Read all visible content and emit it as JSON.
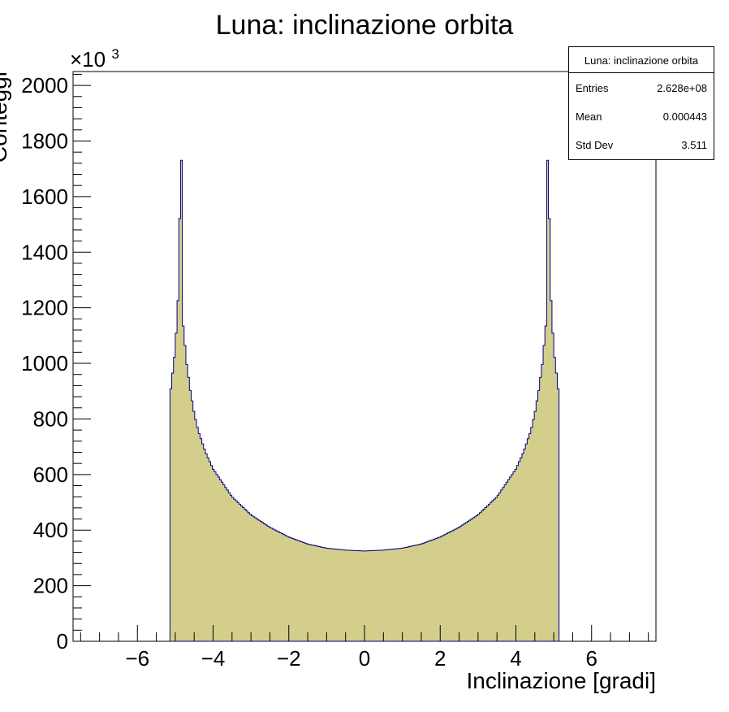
{
  "chart_data": {
    "type": "histogram",
    "title": "Luna: inclinazione orbita",
    "xlabel": "Inclinazione [gradi]",
    "ylabel": "Conteggi",
    "y_multiplier_label": "×10",
    "y_multiplier_exp": "3",
    "xlim": [
      -7.7,
      7.7
    ],
    "ylim": [
      0,
      2050
    ],
    "x_ticks": [
      -6,
      -4,
      -2,
      0,
      2,
      4,
      6
    ],
    "x_tick_labels": [
      "−6",
      "−4",
      "−2",
      "0",
      "2",
      "4",
      "6"
    ],
    "y_ticks": [
      0,
      200,
      400,
      600,
      800,
      1000,
      1200,
      1400,
      1600,
      1800,
      2000
    ],
    "y_tick_labels": [
      "0",
      "200",
      "400",
      "600",
      "800",
      "1000",
      "1200",
      "1400",
      "1600",
      "1800",
      "2000"
    ],
    "fill_color": "#d4ce8c",
    "line_color": "#000080",
    "bins": {
      "x": [
        -5.14,
        -5.0,
        -4.9,
        -4.85,
        -4.8,
        -4.7,
        -4.6,
        -4.5,
        -4.4,
        -4.2,
        -4.0,
        -3.5,
        -3.0,
        -2.5,
        -2.0,
        -1.5,
        -1.0,
        -0.5,
        0.0,
        0.5,
        1.0,
        1.5,
        2.0,
        2.5,
        3.0,
        3.5,
        4.0,
        4.2,
        4.4,
        4.5,
        4.6,
        4.7,
        4.8,
        4.85,
        4.9,
        5.0,
        5.14
      ],
      "y": [
        880,
        1050,
        1300,
        1950,
        1150,
        1000,
        900,
        820,
        760,
        680,
        620,
        520,
        455,
        410,
        375,
        350,
        335,
        328,
        325,
        328,
        335,
        350,
        375,
        410,
        455,
        520,
        620,
        680,
        760,
        820,
        900,
        1000,
        1150,
        1950,
        1300,
        1050,
        880
      ]
    }
  },
  "stats": {
    "title": "Luna: inclinazione orbita",
    "rows": [
      {
        "label": "Entries",
        "value": "2.628e+08"
      },
      {
        "label": "Mean",
        "value": "0.000443"
      },
      {
        "label": "Std Dev",
        "value": "3.511"
      }
    ]
  }
}
